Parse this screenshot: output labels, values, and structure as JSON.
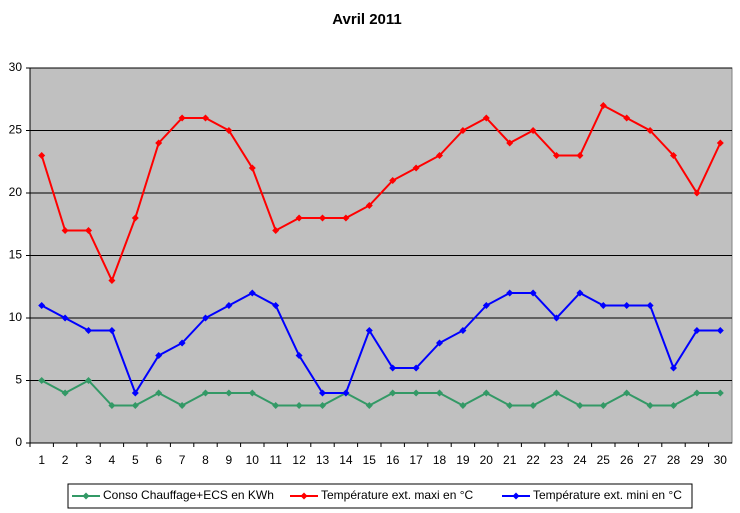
{
  "chart_data": {
    "type": "line",
    "title": "Avril 2011",
    "categories": [
      1,
      2,
      3,
      4,
      5,
      6,
      7,
      8,
      9,
      10,
      11,
      12,
      13,
      14,
      15,
      16,
      17,
      18,
      19,
      20,
      21,
      22,
      23,
      24,
      25,
      26,
      27,
      28,
      29,
      30
    ],
    "series": [
      {
        "name": "Conso Chauffage+ECS en KWh",
        "color": "#339966",
        "values": [
          5,
          4,
          5,
          3,
          3,
          4,
          3,
          4,
          4,
          4,
          3,
          3,
          3,
          4,
          3,
          4,
          4,
          4,
          3,
          4,
          3,
          3,
          4,
          3,
          3,
          4,
          3,
          3,
          4,
          4
        ]
      },
      {
        "name": "Température ext. maxi en °C",
        "color": "#ff0000",
        "values": [
          23,
          17,
          17,
          13,
          18,
          24,
          26,
          26,
          25,
          22,
          17,
          18,
          18,
          18,
          19,
          21,
          22,
          23,
          25,
          26,
          24,
          25,
          23,
          23,
          27,
          26,
          25,
          23,
          20,
          24
        ]
      },
      {
        "name": "Température ext. mini en °C",
        "color": "#0000ff",
        "values": [
          11,
          10,
          9,
          9,
          4,
          7,
          8,
          10,
          11,
          12,
          11,
          7,
          4,
          4,
          9,
          6,
          6,
          8,
          9,
          11,
          12,
          12,
          10,
          12,
          11,
          11,
          11,
          6,
          9,
          9
        ]
      }
    ],
    "ylim": [
      0,
      30
    ],
    "yticks": [
      0,
      5,
      10,
      15,
      20,
      25,
      30
    ],
    "grid": true,
    "legend": "bottom"
  }
}
